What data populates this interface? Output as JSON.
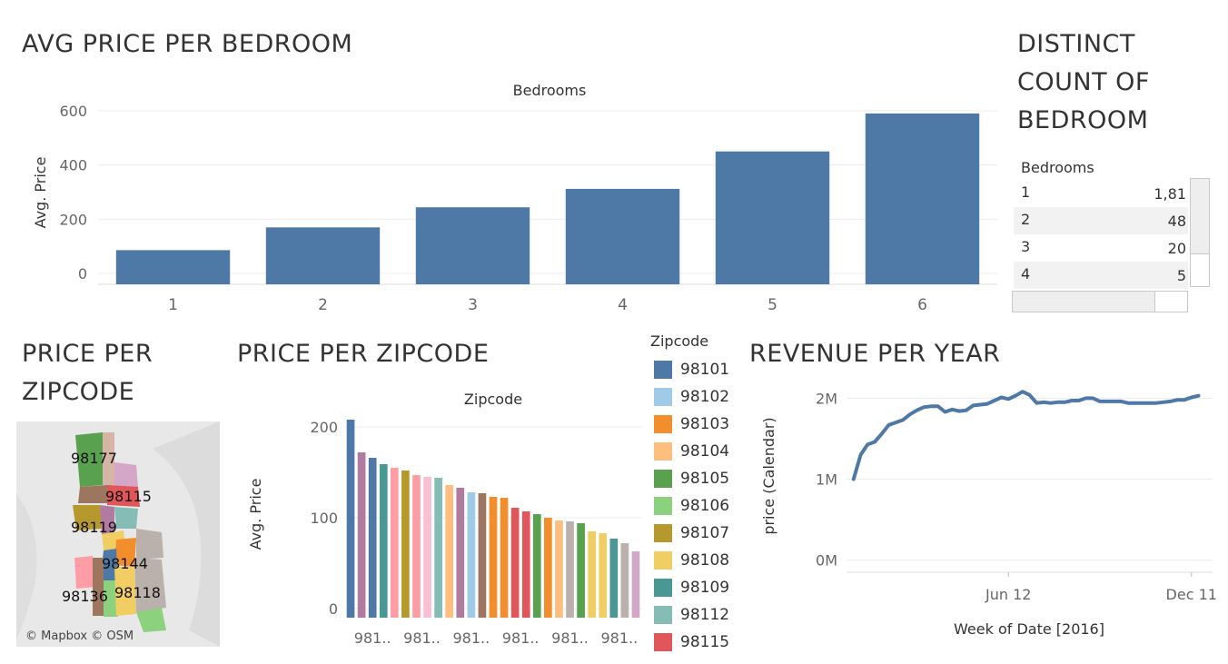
{
  "titles": {
    "avg_price_per_bedroom": "AVG PRICE PER BEDROOM",
    "distinct_count": "DISTINCT COUNT OF BEDROOM",
    "price_per_zipcode_map": "PRICE PER ZIPCODE",
    "price_per_zipcode_bar": "PRICE PER ZIPCODE",
    "revenue_per_year": "REVENUE PER YEAR"
  },
  "bedroom_table": {
    "header": "Bedrooms",
    "rows": [
      {
        "bedrooms": "1",
        "count": "1,81"
      },
      {
        "bedrooms": "2",
        "count": "48"
      },
      {
        "bedrooms": "3",
        "count": "20"
      },
      {
        "bedrooms": "4",
        "count": "5"
      }
    ]
  },
  "map": {
    "credit": "© Mapbox © OSM",
    "labels": [
      "98177",
      "98115",
      "98119",
      "98144",
      "98136",
      "98118"
    ]
  },
  "colors": {
    "bar_blue": "#4e79a7",
    "grid": "#ececec",
    "axis_text": "#666666"
  },
  "chart_data": [
    {
      "type": "bar",
      "title": "AVG PRICE PER BEDROOM",
      "xlabel": "Bedrooms",
      "ylabel": "Avg. Price",
      "categories": [
        "1",
        "2",
        "3",
        "4",
        "5",
        "6"
      ],
      "values": [
        86,
        170,
        244,
        312,
        450,
        590
      ],
      "yticks": [
        "0",
        "200",
        "400",
        "600"
      ],
      "ylim": [
        -40,
        640
      ],
      "color": "#4e79a7",
      "grid": true
    },
    {
      "type": "bar",
      "title": "PRICE PER ZIPCODE",
      "xlabel": "Zipcode",
      "ylabel": "Avg. Price",
      "yticks": [
        "0",
        "100",
        "200"
      ],
      "ylim": [
        -10,
        215
      ],
      "tick_labels": [
        "981..",
        "981..",
        "981..",
        "981..",
        "981..",
        "981.."
      ],
      "values": [
        208,
        172,
        166,
        159,
        155,
        152,
        147,
        145,
        144,
        136,
        133,
        128,
        127,
        123,
        122,
        111,
        107,
        104,
        100,
        97,
        96,
        94,
        85,
        83,
        77,
        72,
        63
      ],
      "colors": [
        "#4e79a7",
        "#b07aa1",
        "#4e79a7",
        "#499894",
        "#ff9da7",
        "#b6992d",
        "#ff9da7",
        "#fabfd2",
        "#86bcb6",
        "#ffbe7d",
        "#b07aa1",
        "#a0cbe8",
        "#9d7660",
        "#f28e2b",
        "#f28e2b",
        "#e15759",
        "#e15759",
        "#59a14f",
        "#f28e2b",
        "#ffbe7d",
        "#bab0ac",
        "#59a14f",
        "#f1ce63",
        "#f1ce63",
        "#499894",
        "#bab0ac",
        "#d4a6c8"
      ],
      "legend": {
        "title": "Zipcode",
        "items": [
          {
            "label": "98101",
            "color": "#4e79a7"
          },
          {
            "label": "98102",
            "color": "#a0cbe8"
          },
          {
            "label": "98103",
            "color": "#f28e2b"
          },
          {
            "label": "98104",
            "color": "#ffbe7d"
          },
          {
            "label": "98105",
            "color": "#59a14f"
          },
          {
            "label": "98106",
            "color": "#8cd17d"
          },
          {
            "label": "98107",
            "color": "#b6992d"
          },
          {
            "label": "98108",
            "color": "#f1ce63"
          },
          {
            "label": "98109",
            "color": "#499894"
          },
          {
            "label": "98112",
            "color": "#86bcb6"
          },
          {
            "label": "98115",
            "color": "#e15759"
          }
        ]
      }
    },
    {
      "type": "line",
      "title": "REVENUE PER YEAR",
      "xlabel": "Week of Date [2016]",
      "ylabel": "price (Calendar)",
      "yticks": [
        "0M",
        "1M",
        "2M"
      ],
      "xticks": [
        "Jun 12",
        "Dec 11"
      ],
      "xtick_weeks": [
        23,
        49
      ],
      "ylim": [
        -0.15,
        2.15
      ],
      "x": [
        1,
        2,
        3,
        4,
        5,
        6,
        7,
        8,
        9,
        10,
        11,
        12,
        13,
        14,
        15,
        16,
        17,
        18,
        19,
        20,
        21,
        22,
        23,
        24,
        25,
        26,
        27,
        28,
        29,
        30,
        31,
        32,
        33,
        34,
        35,
        36,
        37,
        38,
        39,
        40,
        41,
        42,
        43,
        44,
        45,
        46,
        47,
        48,
        49,
        50
      ],
      "values": [
        1.0,
        1.3,
        1.43,
        1.46,
        1.56,
        1.67,
        1.7,
        1.73,
        1.8,
        1.85,
        1.89,
        1.9,
        1.9,
        1.83,
        1.86,
        1.84,
        1.85,
        1.91,
        1.92,
        1.93,
        1.97,
        2.01,
        1.99,
        2.03,
        2.08,
        2.04,
        1.94,
        1.95,
        1.94,
        1.95,
        1.95,
        1.97,
        1.97,
        2.0,
        2.0,
        1.96,
        1.96,
        1.96,
        1.96,
        1.94,
        1.94,
        1.94,
        1.94,
        1.94,
        1.95,
        1.96,
        1.98,
        1.98,
        2.01,
        2.03
      ],
      "color": "#4e79a7"
    }
  ]
}
